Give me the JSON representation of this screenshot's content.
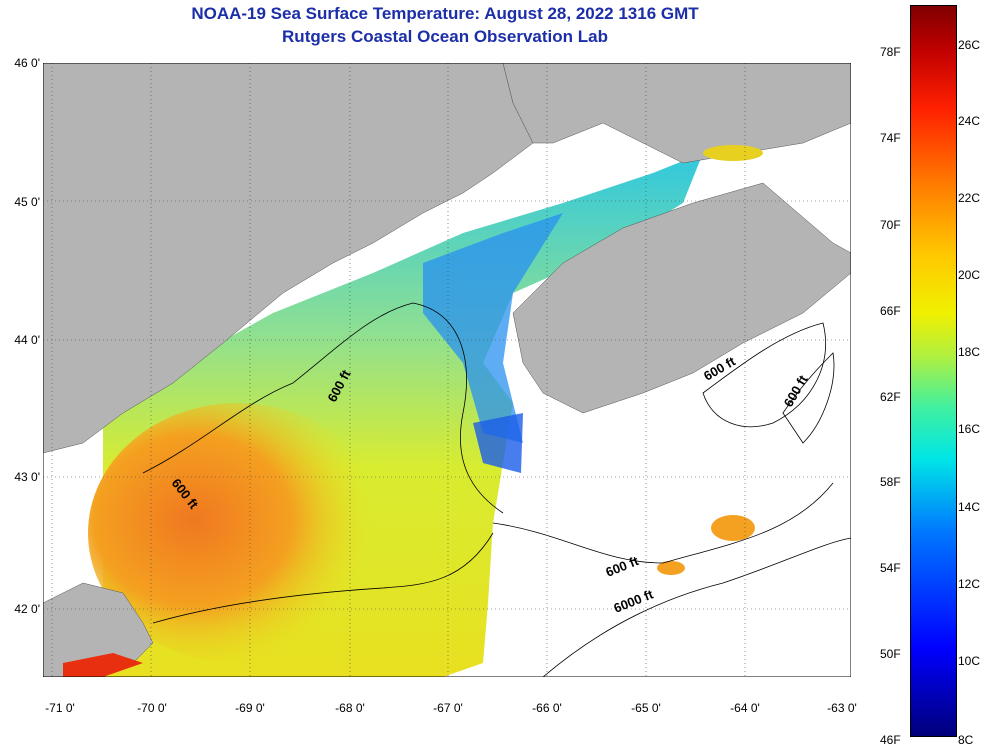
{
  "title": {
    "line1": "NOAA-19 Sea Surface Temperature:  August 28, 2022 1316 GMT",
    "line2": "Rutgers Coastal Ocean Observation Lab"
  },
  "axes": {
    "lat_labels": [
      "46 0'",
      "45 0'",
      "44 0'",
      "43 0'",
      "42 0'"
    ],
    "lon_labels": [
      "-71 0'",
      "-70 0'",
      "-69 0'",
      "-68 0'",
      "-67 0'",
      "-66 0'",
      "-65 0'",
      "-64 0'",
      "-63 0'"
    ]
  },
  "contour_labels": [
    "600 ft",
    "600 ft",
    "600 ft",
    "600 ft",
    "600 ft",
    "6000 ft"
  ],
  "colorbar": {
    "fahrenheit": [
      "78F",
      "74F",
      "70F",
      "66F",
      "62F",
      "58F",
      "54F",
      "50F",
      "46F"
    ],
    "celsius": [
      "26C",
      "24C",
      "22C",
      "20C",
      "18C",
      "16C",
      "14C",
      "12C",
      "10C",
      "8C"
    ]
  },
  "colors": {
    "land": "#b4b4b4",
    "no_data": "#ffffff",
    "title": "#1c2fa8"
  }
}
